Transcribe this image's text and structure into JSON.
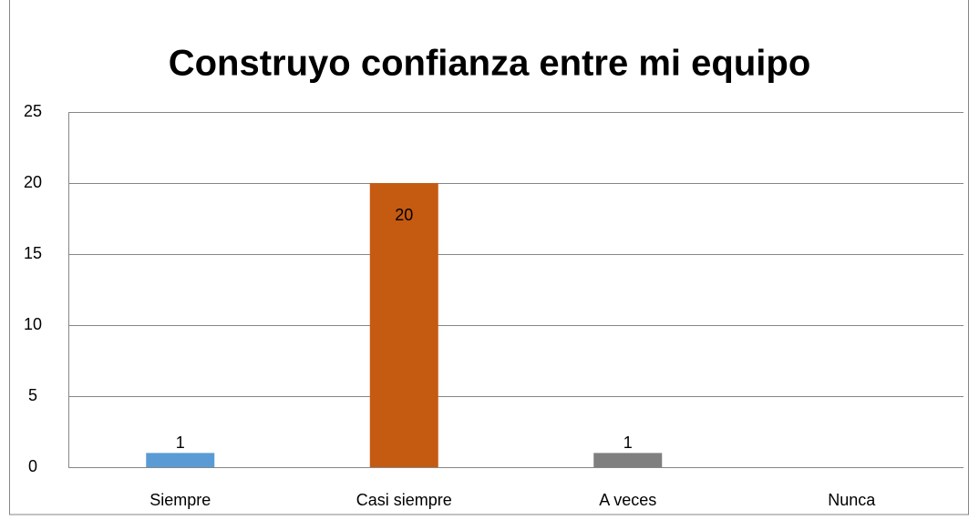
{
  "chart_data": {
    "type": "bar",
    "title": "Construyo confianza entre mi equipo",
    "categories": [
      "Siempre",
      "Casi siempre",
      "A veces",
      "Nunca"
    ],
    "values": [
      1,
      20,
      1,
      0
    ],
    "colors": [
      "#5b9bd5",
      "#c55a11",
      "#7f7f7f",
      "#ffc000"
    ],
    "ylim": [
      0,
      25
    ],
    "yticks": [
      0,
      5,
      10,
      15,
      20,
      25
    ],
    "grid": true
  }
}
